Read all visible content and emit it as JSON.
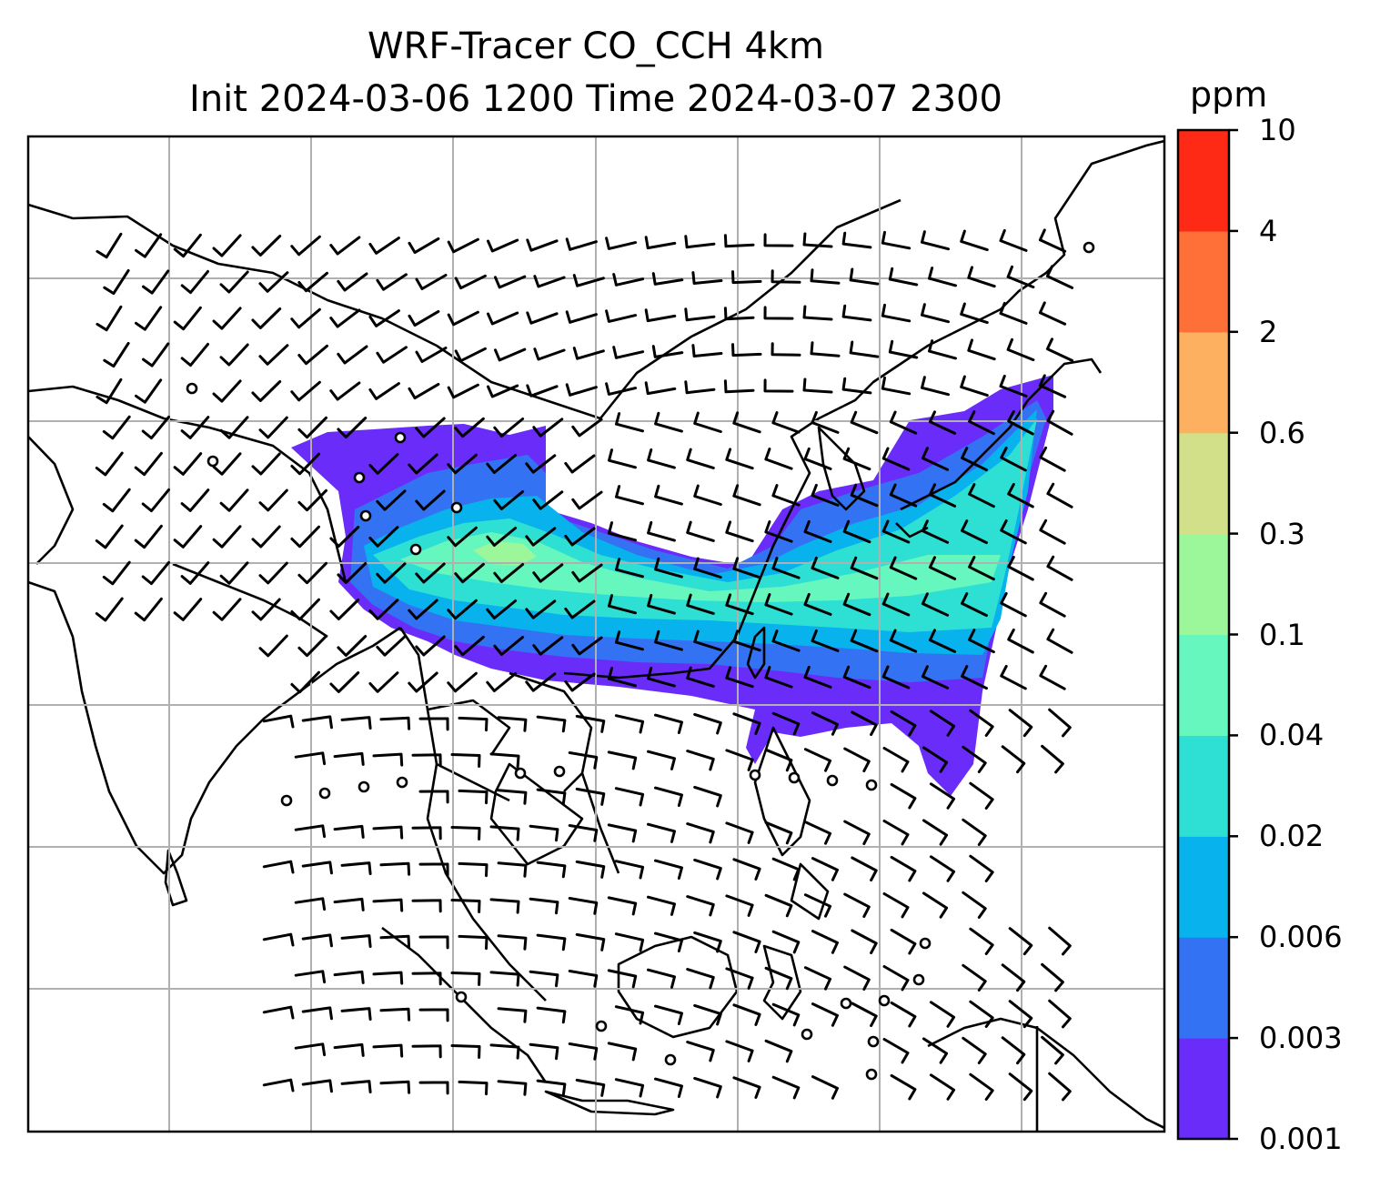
{
  "title": {
    "line1": "WRF-Tracer CO_CCH 4km",
    "line2": "Init 2024-03-06 1200 Time 2024-03-07 2300"
  },
  "colorbar": {
    "unit": "ppm",
    "levels": [
      "0.001",
      "0.003",
      "0.006",
      "0.02",
      "0.04",
      "0.1",
      "0.3",
      "0.6",
      "2",
      "4",
      "10"
    ],
    "colors": [
      "#6a2cf8",
      "#3472f4",
      "#08b2ec",
      "#2ee0d4",
      "#66f7be",
      "#9cf79a",
      "#d2e08a",
      "#fcb060",
      "#ff7038",
      "#ff2a16"
    ]
  },
  "map": {
    "gridlines": true,
    "coastline_color": "#000000",
    "plume_colors": [
      "#6a2cf8",
      "#3472f4",
      "#08b2ec",
      "#2ee0d4",
      "#66f7be",
      "#9cf79a"
    ]
  }
}
